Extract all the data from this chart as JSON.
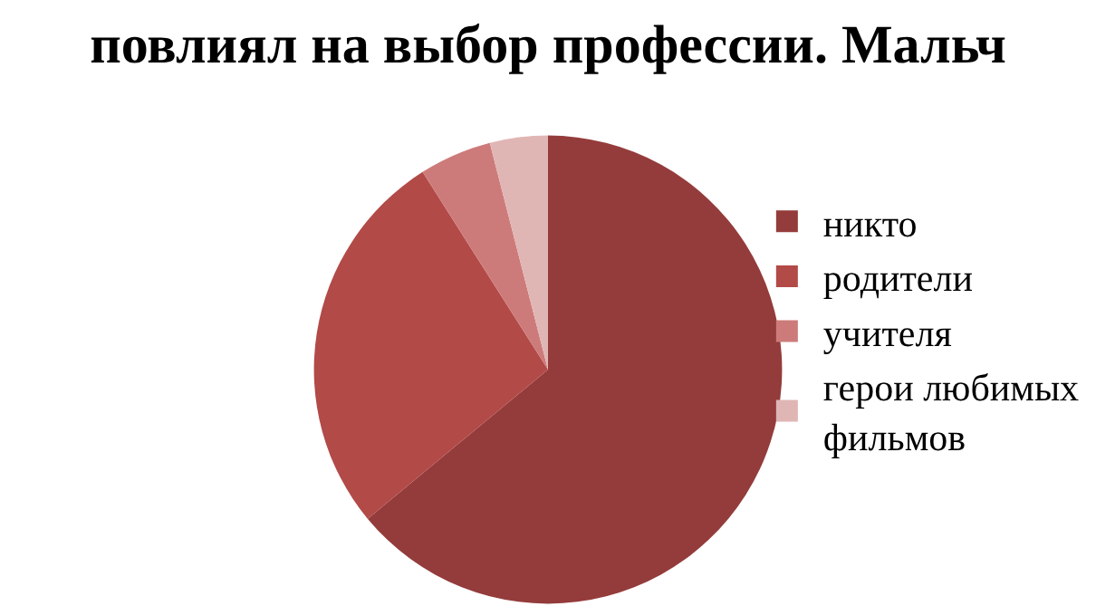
{
  "chart_data": {
    "type": "pie",
    "title": "повлиял на выбор профессии. Мальч",
    "categories": [
      "никто",
      "родители",
      "учителя",
      "герои любимых фильмов"
    ],
    "values": [
      64,
      27,
      5,
      4
    ],
    "colors": [
      "#943c3b",
      "#b24a47",
      "#cd7b7a",
      "#e0b6b5"
    ],
    "legend": "right"
  }
}
